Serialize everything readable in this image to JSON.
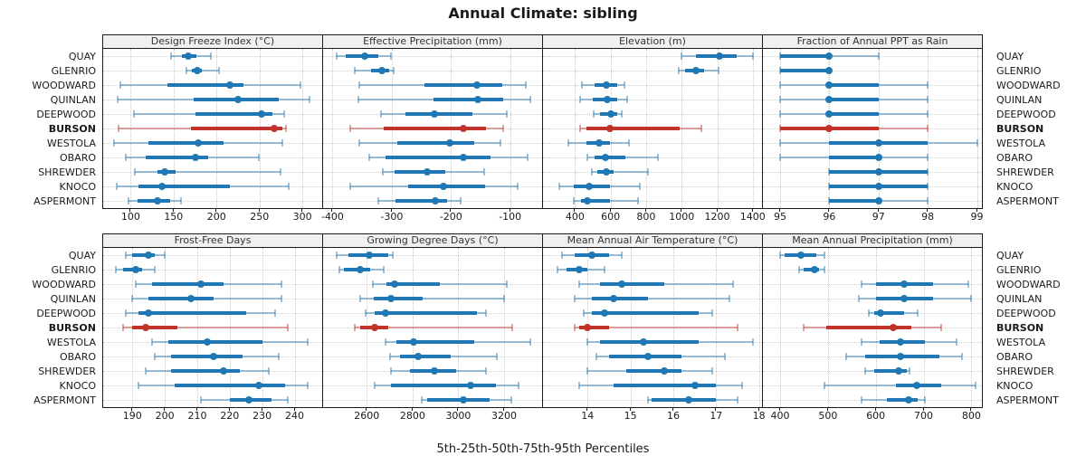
{
  "title": "Annual Climate: sibling",
  "caption": "5th-25th-50th-75th-95th Percentiles",
  "locations": [
    "QUAY",
    "GLENRIO",
    "WOODWARD",
    "QUINLAN",
    "DEEPWOOD",
    "BURSON",
    "WESTOLA",
    "OBARO",
    "SHREWDER",
    "KNOCO",
    "ASPERMONT"
  ],
  "highlight": "BURSON",
  "percentile_order": [
    "p5",
    "p25",
    "p50",
    "p75",
    "p95"
  ],
  "colors": {
    "series": "#1f77b4",
    "series_light": "rgba(31,119,180,0.45)",
    "highlight": "#c1322a",
    "highlight_light": "rgba(193,50,42,0.45)",
    "grid": "#c9c9c9",
    "border": "#1a1a1a",
    "header_bg": "#f0f0f0"
  },
  "chart_data": [
    {
      "type": "interval",
      "title": "Design Freeze Index (°C)",
      "row": "top",
      "domain": [
        68,
        323
      ],
      "ticks": [
        100,
        150,
        200,
        250,
        300
      ],
      "values": {
        "QUAY": [
          147,
          160,
          167,
          177,
          193
        ],
        "GLENRIO": [
          165,
          171,
          178,
          183,
          203
        ],
        "WOODWARD": [
          88,
          143,
          216,
          231,
          298
        ],
        "QUINLAN": [
          85,
          173,
          225,
          272,
          308
        ],
        "DEEPWOOD": [
          104,
          175,
          252,
          265,
          279
        ],
        "BURSON": [
          86,
          170,
          267,
          277,
          281
        ],
        "WESTOLA": [
          81,
          121,
          179,
          208,
          277
        ],
        "OBARO": [
          94,
          117,
          175,
          190,
          249
        ],
        "SHREWDER": [
          105,
          131,
          140,
          152,
          275
        ],
        "KNOCO": [
          84,
          109,
          136,
          216,
          284
        ],
        "ASPERMONT": [
          97,
          108,
          131,
          146,
          159
        ]
      }
    },
    {
      "type": "interval",
      "title": "Effective Precipitation (mm)",
      "row": "top",
      "domain": [
        -416,
        -46
      ],
      "ticks": [
        -400,
        -300,
        -200,
        -100
      ],
      "values": {
        "QUAY": [
          -393,
          -378,
          -346,
          -322,
          -302
        ],
        "GLENRIO": [
          -362,
          -335,
          -317,
          -305,
          -297
        ],
        "WOODWARD": [
          -355,
          -244,
          -156,
          -113,
          -74
        ],
        "QUINLAN": [
          -357,
          -229,
          -155,
          -111,
          -66
        ],
        "DEEPWOOD": [
          -318,
          -277,
          -228,
          -164,
          -105
        ],
        "BURSON": [
          -370,
          -314,
          -179,
          -141,
          -112
        ],
        "WESTOLA": [
          -355,
          -290,
          -202,
          -160,
          -116
        ],
        "OBARO": [
          -338,
          -310,
          -179,
          -133,
          -71
        ],
        "SHREWDER": [
          -315,
          -295,
          -240,
          -209,
          -144
        ],
        "KNOCO": [
          -370,
          -273,
          -212,
          -143,
          -88
        ],
        "ASPERMONT": [
          -322,
          -293,
          -227,
          -206,
          -184
        ]
      }
    },
    {
      "type": "interval",
      "title": "Elevation (m)",
      "row": "top",
      "domain": [
        220,
        1452
      ],
      "ticks": [
        400,
        600,
        800,
        1000,
        1200,
        1400
      ],
      "values": {
        "QUAY": [
          1000,
          1080,
          1215,
          1310,
          1400
        ],
        "GLENRIO": [
          985,
          1020,
          1080,
          1125,
          1210
        ],
        "WOODWARD": [
          437,
          508,
          578,
          640,
          680
        ],
        "QUINLAN": [
          430,
          500,
          580,
          635,
          695
        ],
        "DEEPWOOD": [
          505,
          540,
          600,
          635,
          665
        ],
        "BURSON": [
          430,
          465,
          595,
          990,
          1113
        ],
        "WESTOLA": [
          360,
          465,
          535,
          595,
          705
        ],
        "OBARO": [
          470,
          508,
          570,
          682,
          868
        ],
        "SHREWDER": [
          495,
          525,
          578,
          618,
          810
        ],
        "KNOCO": [
          310,
          392,
          480,
          595,
          765
        ],
        "ASPERMONT": [
          395,
          432,
          470,
          595,
          755
        ]
      }
    },
    {
      "type": "interval",
      "title": "Fraction of Annual PPT as Rain",
      "row": "top",
      "domain": [
        94.65,
        99.1
      ],
      "ticks": [
        95,
        96,
        97,
        98,
        99
      ],
      "values": {
        "QUAY": [
          95,
          95,
          96,
          96,
          97
        ],
        "GLENRIO": [
          95,
          95,
          96,
          96,
          96
        ],
        "WOODWARD": [
          95,
          96,
          96,
          97,
          98
        ],
        "QUINLAN": [
          95,
          96,
          96,
          97,
          98
        ],
        "DEEPWOOD": [
          95,
          96,
          96,
          97,
          98
        ],
        "BURSON": [
          95,
          95,
          96,
          97,
          98
        ],
        "WESTOLA": [
          95,
          96,
          97,
          98,
          99
        ],
        "OBARO": [
          95,
          96,
          97,
          97,
          98
        ],
        "SHREWDER": [
          96,
          96,
          97,
          98,
          98
        ],
        "KNOCO": [
          96,
          96,
          97,
          98,
          98
        ],
        "ASPERMONT": [
          96,
          96,
          97,
          97,
          98
        ]
      }
    },
    {
      "type": "interval",
      "title": "Frost-Free Days",
      "row": "bottom",
      "domain": [
        181,
        248.5
      ],
      "ticks": [
        190,
        200,
        210,
        220,
        230,
        240
      ],
      "values": {
        "QUAY": [
          188,
          190,
          195,
          197,
          200
        ],
        "GLENRIO": [
          185,
          187,
          191,
          193,
          197
        ],
        "WOODWARD": [
          191,
          196,
          211,
          218,
          236
        ],
        "QUINLAN": [
          190,
          195,
          208,
          215,
          236
        ],
        "DEEPWOOD": [
          188,
          192,
          195,
          225,
          234
        ],
        "BURSON": [
          187,
          190,
          194,
          204,
          238
        ],
        "WESTOLA": [
          196,
          201,
          213,
          230,
          244
        ],
        "OBARO": [
          197,
          202,
          215,
          224,
          235
        ],
        "SHREWDER": [
          194,
          202,
          218,
          223,
          232
        ],
        "KNOCO": [
          192,
          203,
          229,
          237,
          244
        ],
        "ASPERMONT": [
          211,
          220,
          226,
          233,
          238
        ]
      }
    },
    {
      "type": "interval",
      "title": "Growing Degree Days (°C)",
      "row": "bottom",
      "domain": [
        2409,
        3366
      ],
      "ticks": [
        2600,
        2800,
        3000,
        3200
      ],
      "values": {
        "QUAY": [
          2470,
          2520,
          2610,
          2695,
          2715
        ],
        "GLENRIO": [
          2480,
          2500,
          2570,
          2615,
          2675
        ],
        "WOODWARD": [
          2625,
          2685,
          2720,
          2920,
          3210
        ],
        "QUINLAN": [
          2570,
          2630,
          2705,
          2845,
          3200
        ],
        "DEEPWOOD": [
          2595,
          2635,
          2680,
          3080,
          3120
        ],
        "BURSON": [
          2548,
          2570,
          2635,
          2695,
          3235
        ],
        "WESTOLA": [
          2680,
          2730,
          2805,
          3070,
          3315
        ],
        "OBARO": [
          2700,
          2745,
          2825,
          2965,
          3170
        ],
        "SHREWDER": [
          2705,
          2790,
          2895,
          2990,
          3120
        ],
        "KNOCO": [
          2635,
          2705,
          3055,
          3165,
          3265
        ],
        "ASPERMONT": [
          2840,
          2865,
          3020,
          3135,
          3230
        ]
      }
    },
    {
      "type": "interval",
      "title": "Mean Annual Air Temperature (°C)",
      "row": "bottom",
      "domain": [
        12.96,
        18.07
      ],
      "ticks": [
        14,
        15,
        16,
        17,
        18
      ],
      "values": {
        "QUAY": [
          13.4,
          13.7,
          14.1,
          14.5,
          14.8
        ],
        "GLENRIO": [
          13.3,
          13.5,
          13.8,
          14.0,
          14.4
        ],
        "WOODWARD": [
          13.8,
          14.3,
          14.8,
          15.8,
          17.4
        ],
        "QUINLAN": [
          13.7,
          14.1,
          14.6,
          15.4,
          17.3
        ],
        "DEEPWOOD": [
          13.9,
          14.1,
          14.4,
          16.6,
          16.9
        ],
        "BURSON": [
          13.7,
          13.8,
          14.0,
          14.5,
          17.5
        ],
        "WESTOLA": [
          14.0,
          14.3,
          15.3,
          16.6,
          17.85
        ],
        "OBARO": [
          14.2,
          14.5,
          15.4,
          16.2,
          17.2
        ],
        "SHREWDER": [
          14.0,
          14.9,
          15.8,
          16.2,
          16.9
        ],
        "KNOCO": [
          13.8,
          14.6,
          16.5,
          17.0,
          17.6
        ],
        "ASPERMONT": [
          15.4,
          15.5,
          16.35,
          17.0,
          17.5
        ]
      }
    },
    {
      "type": "interval",
      "title": "Mean Annual Precipitation (mm)",
      "row": "bottom",
      "domain": [
        364,
        822
      ],
      "ticks": [
        400,
        500,
        600,
        700,
        800
      ],
      "values": {
        "QUAY": [
          400,
          410,
          443,
          476,
          492
        ],
        "GLENRIO": [
          440,
          450,
          472,
          482,
          493
        ],
        "WOODWARD": [
          570,
          600,
          660,
          720,
          793
        ],
        "QUINLAN": [
          565,
          600,
          660,
          720,
          800
        ],
        "DEEPWOOD": [
          585,
          597,
          610,
          660,
          687
        ],
        "BURSON": [
          450,
          497,
          637,
          675,
          737
        ],
        "WESTOLA": [
          571,
          609,
          651,
          703,
          769
        ],
        "OBARO": [
          538,
          577,
          651,
          734,
          781
        ],
        "SHREWDER": [
          577,
          596,
          648,
          664,
          671
        ],
        "KNOCO": [
          493,
          643,
          685,
          736,
          808
        ],
        "ASPERMONT": [
          571,
          624,
          669,
          688,
          702
        ]
      }
    }
  ]
}
